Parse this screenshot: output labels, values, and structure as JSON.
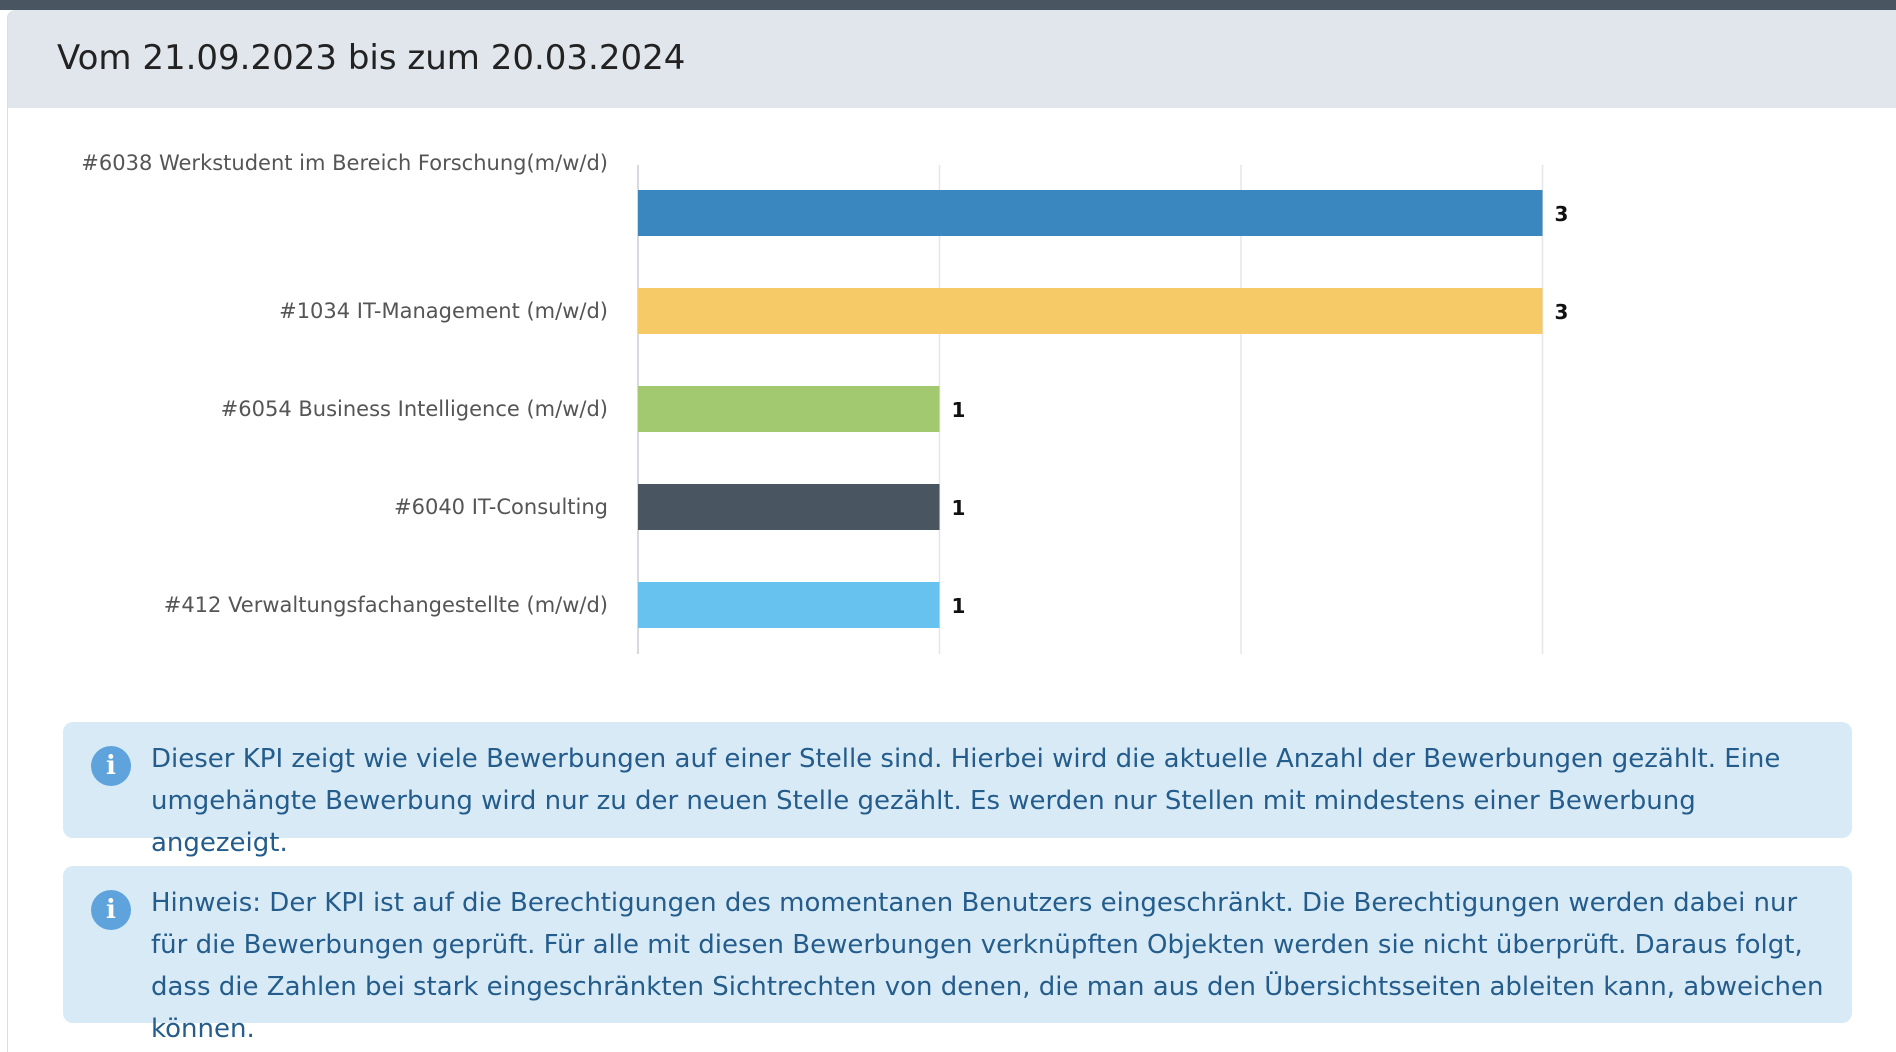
{
  "header": {
    "title": "Vom 21.09.2023 bis zum 20.03.2024"
  },
  "chart_data": {
    "type": "bar",
    "orientation": "horizontal",
    "categories": [
      "#6038 Werkstudent im Bereich Forschung(m/w/d)",
      "#1034 IT-Management (m/w/d)",
      "#6054 Business Intelligence (m/w/d)",
      "#6040 IT-Consulting",
      "#412 Verwaltungsfachangestellte (m/w/d)"
    ],
    "values": [
      3,
      3,
      1,
      1,
      1
    ],
    "value_labels": [
      "3",
      "3",
      "1",
      "1",
      "1"
    ],
    "colors": [
      "#3a87bf",
      "#f6ca66",
      "#a2c970",
      "#4a5562",
      "#68c2ef"
    ],
    "xlim": [
      0,
      3
    ],
    "gridlines": [
      0,
      1,
      2,
      3
    ],
    "grid": true,
    "title": "",
    "xlabel": "",
    "ylabel": "",
    "legend": "none"
  },
  "info": {
    "text_1": "Dieser KPI zeigt wie viele Bewerbungen auf einer Stelle sind. Hierbei wird die aktuelle Anzahl der Bewerbungen gezählt. Eine umgehängte Bewerbung wird nur zu der neuen Stelle gezählt. Es werden nur Stellen mit mindestens einer Bewerbung angezeigt.",
    "text_2": "Hinweis: Der KPI ist auf die Berechtigungen des momentanen Benutzers eingeschränkt. Die Berechtigungen werden dabei nur für die Bewerbungen geprüft. Für alle mit diesen Bewerbungen verknüpften Objekten werden sie nicht überprüft. Daraus folgt, dass die Zahlen bei stark eingeschränkten Sichtrechten von denen, die man aus den Übersichtsseiten ableiten kann, abweichen können.",
    "icon": "info-icon"
  }
}
